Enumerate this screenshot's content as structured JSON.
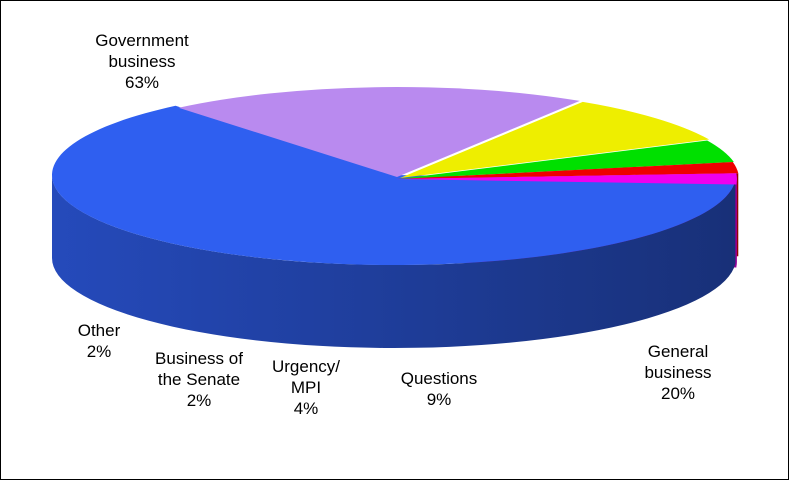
{
  "chart_data": {
    "type": "pie",
    "style": "3d-exploded",
    "title": "",
    "slices": [
      {
        "label": "Government business",
        "value": 63,
        "percent_label": "63%",
        "color": "#2f5ff0",
        "label_lines": [
          "Government",
          "business",
          "63%"
        ]
      },
      {
        "label": "General business",
        "value": 20,
        "percent_label": "20%",
        "color": "#b98aef",
        "label_lines": [
          "General",
          "business",
          "20%"
        ]
      },
      {
        "label": "Questions",
        "value": 9,
        "percent_label": "9%",
        "color": "#eeee00",
        "label_lines": [
          "Questions",
          "9%"
        ]
      },
      {
        "label": "Urgency/ MPI",
        "value": 4,
        "percent_label": "4%",
        "color": "#00e000",
        "label_lines": [
          "Urgency/",
          "MPI",
          "4%"
        ]
      },
      {
        "label": "Business of the Senate",
        "value": 2,
        "percent_label": "2%",
        "color": "#ee0000",
        "label_lines": [
          "Business of",
          "the Senate",
          "2%"
        ]
      },
      {
        "label": "Other",
        "value": 2,
        "percent_label": "2%",
        "color": "#ee00ee",
        "label_lines": [
          "Other",
          "2%"
        ]
      }
    ],
    "legend": "none",
    "exploded_slices": [
      "General business",
      "Questions",
      "Urgency/ MPI",
      "Business of the Senate",
      "Other"
    ]
  }
}
